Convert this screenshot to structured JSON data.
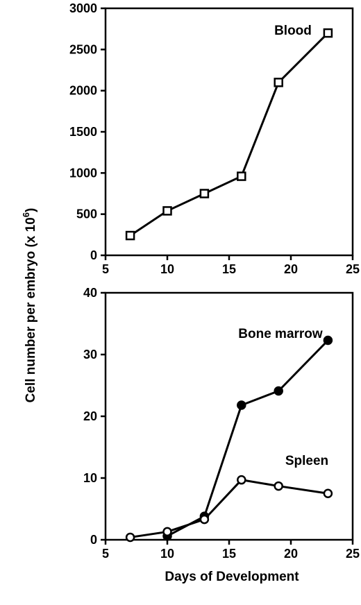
{
  "chart_data": [
    {
      "type": "line",
      "xlim": [
        5,
        25
      ],
      "ylim": [
        0,
        3000
      ],
      "x_ticks": [
        "5",
        "10",
        "15",
        "20",
        "25"
      ],
      "y_ticks": [
        "0",
        "500",
        "1000",
        "1500",
        "2000",
        "2500",
        "3000"
      ],
      "series": [
        {
          "name": "Blood",
          "marker": "open-square",
          "x": [
            7,
            10,
            13,
            16,
            19,
            23
          ],
          "y": [
            240,
            540,
            750,
            960,
            2100,
            2700
          ]
        }
      ]
    },
    {
      "type": "line",
      "xlim": [
        5,
        25
      ],
      "ylim": [
        0,
        40
      ],
      "x_ticks": [
        "5",
        "10",
        "15",
        "20",
        "25"
      ],
      "y_ticks": [
        "0",
        "10",
        "20",
        "30",
        "40"
      ],
      "series": [
        {
          "name": "Bone marrow",
          "marker": "filled-circle",
          "x": [
            10,
            13,
            16,
            19,
            23
          ],
          "y": [
            0.6,
            3.8,
            21.8,
            24.1,
            32.3
          ]
        },
        {
          "name": "Spleen",
          "marker": "open-circle",
          "x": [
            7,
            10,
            13,
            16,
            19,
            23
          ],
          "y": [
            0.4,
            1.3,
            3.3,
            9.7,
            8.7,
            7.5
          ]
        }
      ]
    }
  ],
  "labels": {
    "y_axis_prefix": "Cell number per embryo (x 10",
    "y_axis_exponent": "6",
    "y_axis_suffix": ")",
    "x_axis": "Days of Development"
  }
}
